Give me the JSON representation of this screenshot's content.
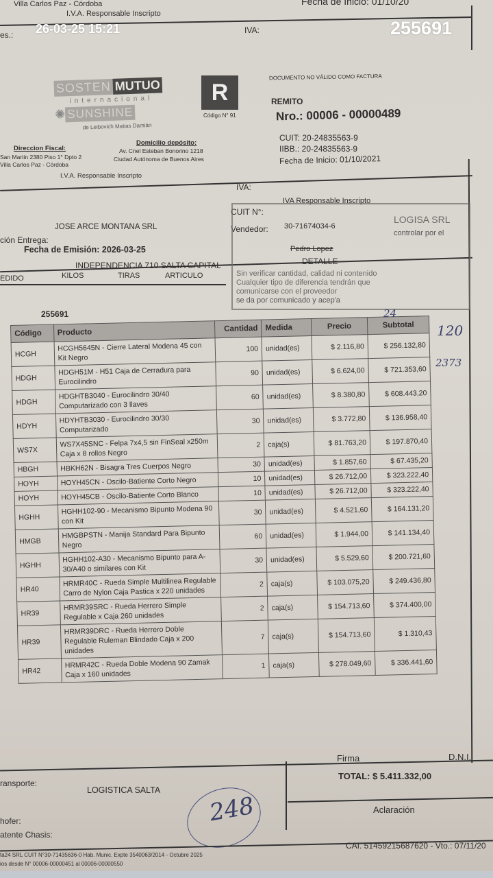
{
  "camera_overlay": {
    "datetime": "26-03-25 15:21",
    "number": "255691"
  },
  "top_strip": {
    "address_cut": "Villa Carlos Paz - Córdoba",
    "fecha_inicio_cut": "Fecha de Inicio: 01/10/20",
    "iva_cond": "I.V.A. Responsable Inscripto",
    "label_cut": "es.:",
    "iva_label": "IVA:"
  },
  "header": {
    "logo": {
      "sosten": "SOSTEN",
      "mutuo": "MUTUO",
      "internacional": "internacional",
      "sunshine": "SUNSHINE",
      "owner": "de Leibovich Matias Damián"
    },
    "letter": "R",
    "codigo": "Código N° 91",
    "no_valido": "DOCUMENTO NO VÁLIDO COMO FACTURA",
    "doc_type": "REMITO",
    "numero": "Nro.: 00006 - 00000489",
    "cuit": "CUIT: 20-24835563-9",
    "iibb": "IIBB.: 20-24835563-9",
    "fecha_inicio": "Fecha de Inicio: 01/10/2021",
    "direccion_fiscal_label": "Direccion Fiscal:",
    "direccion_fiscal_1": "San Martin 2380 Piso 1° Dpto 2",
    "direccion_fiscal_2": "Villa Carlos Paz - Córdoba",
    "deposito_label": "Domicilio depósito:",
    "deposito_1": "Av. Cnel Esteban Bonorino 1218",
    "deposito_2": "Ciudad Autónoma de Buenos Aires",
    "iva_cond": "I.V.A. Responsable Inscripto"
  },
  "client": {
    "iva_label": "IVA:",
    "cuit_label": "CUIT N°:",
    "iva_value": "IVA Responsable Inscripto",
    "name": "JOSE ARCE MONTANA SRL",
    "vendedor_label": "Vendedor:",
    "vendedor_cuit": "30-71674034-6",
    "entrega_label": "ción Entrega:",
    "fecha_emision": "Fecha de Emisión: 2026-03-25",
    "vendedor_name": "Pedro Lopez",
    "address": "INDEPENDENCIA 710 SALTA CAPITAL",
    "detalle": "DETALLE",
    "cols": {
      "pedido": "EDIDO",
      "kilos": "KILOS",
      "tiras": "TIRAS",
      "articulo": "ARTICULO"
    },
    "pedido_number": "255691"
  },
  "table": {
    "headers": [
      "Código",
      "Producto",
      "Cantidad",
      "Medida",
      "Precio",
      "Subtotal"
    ],
    "rows": [
      {
        "codigo": "HCGH",
        "producto": "HCGH5645N - Cierre Lateral Modena 45 con Kit Negro",
        "cantidad": "100",
        "medida": "unidad(es)",
        "precio": "$ 2.116,80",
        "subtotal": "$ 256.132,80"
      },
      {
        "codigo": "HDGH",
        "producto": "HDGH51M - H51 Caja de Cerradura para Eurocilindro",
        "cantidad": "90",
        "medida": "unidad(es)",
        "precio": "$ 6.624,00",
        "subtotal": "$ 721.353,60"
      },
      {
        "codigo": "HDGH",
        "producto": "HDGHTB3040 - Eurocilindro 30/40 Computarizado con 3 llaves",
        "cantidad": "60",
        "medida": "unidad(es)",
        "precio": "$ 8.380,80",
        "subtotal": "$ 608.443,20"
      },
      {
        "codigo": "HDYH",
        "producto": "HDYHTB3030 - Eurocilindro 30/30 Computarizado",
        "cantidad": "30",
        "medida": "unidad(es)",
        "precio": "$ 3.772,80",
        "subtotal": "$ 136.958,40"
      },
      {
        "codigo": "WS7X",
        "producto": "WS7X45SNC - Felpa 7x4,5 sin FinSeal x250m Caja x 8 rollos Negro",
        "cantidad": "2",
        "medida": "caja(s)",
        "precio": "$ 81.763,20",
        "subtotal": "$ 197.870,40"
      },
      {
        "codigo": "HBGH",
        "producto": "HBKH62N - Bisagra Tres Cuerpos Negro",
        "cantidad": "30",
        "medida": "unidad(es)",
        "precio": "$ 1.857,60",
        "subtotal": "$ 67.435,20"
      },
      {
        "codigo": "HOYH",
        "producto": "HOYH45CN - Oscilo-Batiente Corto Negro",
        "cantidad": "10",
        "medida": "unidad(es)",
        "precio": "$ 26.712,00",
        "subtotal": "$ 323.222,40"
      },
      {
        "codigo": "HOYH",
        "producto": "HOYH45CB - Oscilo-Batiente Corto Blanco",
        "cantidad": "10",
        "medida": "unidad(es)",
        "precio": "$ 26.712,00",
        "subtotal": "$ 323.222,40"
      },
      {
        "codigo": "HGHH",
        "producto": "HGHH102-90 - Mecanismo Bipunto Modena 90 con Kit",
        "cantidad": "30",
        "medida": "unidad(es)",
        "precio": "$ 4.521,60",
        "subtotal": "$ 164.131,20"
      },
      {
        "codigo": "HMGB",
        "producto": "HMGBPSTN - Manija Standard Para Bipunto Negro",
        "cantidad": "60",
        "medida": "unidad(es)",
        "precio": "$ 1.944,00",
        "subtotal": "$ 141.134,40"
      },
      {
        "codigo": "HGHH",
        "producto": "HGHH102-A30 - Mecanismo Bipunto para A-30/A40 o similares con Kit",
        "cantidad": "30",
        "medida": "unidad(es)",
        "precio": "$ 5.529,60",
        "subtotal": "$ 200.721,60"
      },
      {
        "codigo": "HR40",
        "producto": "HRMR40C - Rueda Simple Multilinea Regulable Carro de Nylon Caja Pastica x 220 unidades",
        "cantidad": "2",
        "medida": "caja(s)",
        "precio": "$ 103.075,20",
        "subtotal": "$ 249.436,80"
      },
      {
        "codigo": "HR39",
        "producto": "HRMR39SRC - Rueda Herrero Simple Regulable x Caja 260 unidades",
        "cantidad": "2",
        "medida": "caja(s)",
        "precio": "$ 154.713,60",
        "subtotal": "$ 374.400,00"
      },
      {
        "codigo": "HR39",
        "producto": "HRMR39DRC - Rueda Herrero Doble Regulable Ruleman Blindado Caja x 200 unidades",
        "cantidad": "7",
        "medida": "caja(s)",
        "precio": "$ 154.713,60",
        "subtotal": "$ 1.310,43"
      },
      {
        "codigo": "HR42",
        "producto": "HRMR42C - Rueda Doble Modena 90 Zamak Caja x 160 unidades",
        "cantidad": "1",
        "medida": "caja(s)",
        "precio": "$ 278.049,60",
        "subtotal": "$ 336.441,60"
      }
    ]
  },
  "stamp": {
    "company": "LOGISA SRL",
    "line1": "controlar por el",
    "line2": "Sin verificar cantidad, calidad ni contenido",
    "line3": "Cualquier tipo de diferencia tendrán que",
    "line4": "comunicarse con el proveedor",
    "line5": "se da por comunicado y acep'a"
  },
  "handwriting": {
    "note1": "24",
    "note2": "2373",
    "note3": "120",
    "circled": "248"
  },
  "footer": {
    "firma": "Firma",
    "dni": "D.N.I.",
    "total": "TOTAL: $ 5.411.332,00",
    "transporte_label": "ransporte:",
    "transporte": "LOGISTICA SALTA",
    "aclaracion": "Aclaración",
    "chofer_label": "hofer:",
    "patente_label": "atente Chasis:",
    "cai": "CAI. 51459215687620 - Vto.: 07/11/20",
    "imprenta_1": "ta24 SRL CUIT N°30-71435636-0 Hab. Munic. Expte 3540063/2014 - Octubre 2025",
    "imprenta_2": "ios desde N° 00006-00000451 al 00006-00000550"
  }
}
